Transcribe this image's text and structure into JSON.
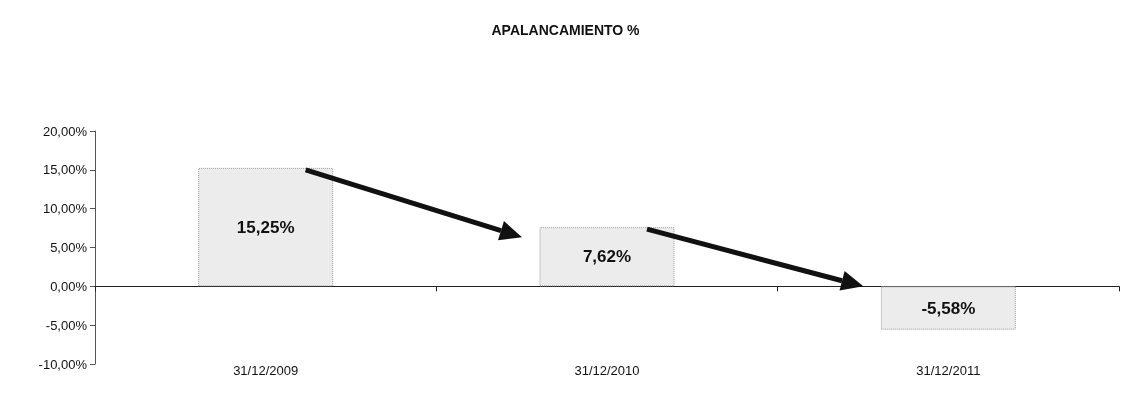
{
  "chart_data": {
    "type": "bar",
    "title": "APALANCAMIENTO %",
    "categories": [
      "31/12/2009",
      "31/12/2010",
      "31/12/2011"
    ],
    "values": [
      15.25,
      7.62,
      -5.58
    ],
    "value_labels": [
      "15,25%",
      "7,62%",
      "-5,58%"
    ],
    "color": "#ececec",
    "ylim": [
      -10,
      20
    ],
    "yticks": [
      {
        "value": -10,
        "label": "-10,00%"
      },
      {
        "value": -5,
        "label": "-5,00%"
      },
      {
        "value": 0,
        "label": "0,00%"
      },
      {
        "value": 5,
        "label": "5,00%"
      },
      {
        "value": 10,
        "label": "10,00%"
      },
      {
        "value": 15,
        "label": "15,00%"
      },
      {
        "value": 20,
        "label": "20,00%"
      }
    ],
    "ylabel": null
  }
}
